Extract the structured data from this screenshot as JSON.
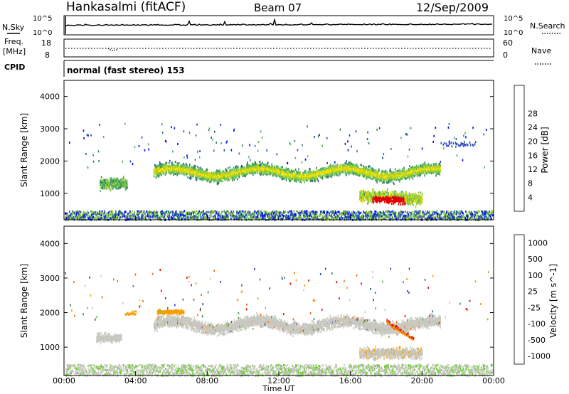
{
  "header": {
    "station": "Hankasalmi (fitACF)",
    "beam": "Beam 07",
    "date": "12/Sep/2009"
  },
  "noise_panel": {
    "left_label": "N.Sky",
    "right_label": "N.Search",
    "left_ticks": [
      "10^5",
      "10^0"
    ],
    "right_ticks": [
      "10^5",
      "10^0"
    ]
  },
  "freq_panel": {
    "left_label": "Freq.",
    "left_unit": "[MHz]",
    "right_label": "Nave",
    "left_ticks": [
      "18",
      "8"
    ],
    "right_ticks": [
      "60",
      "0"
    ]
  },
  "cpid_panel": {
    "label": "CPID",
    "text": "normal (fast stereo) 153"
  },
  "chart_data": [
    {
      "type": "heatmap",
      "name": "power",
      "ylabel": "Slant Range [km]",
      "y_ticks": [
        "1000",
        "2000",
        "3000",
        "4000"
      ],
      "ylim": [
        180,
        4500
      ],
      "colorbar_label": "Power [dB]",
      "colorbar_ticks": [
        "4",
        "8",
        "12",
        "16",
        "20",
        "24",
        "28"
      ],
      "colorbar_range": [
        0,
        30
      ],
      "colormap": [
        "#0000ff",
        "#2244bb",
        "#2e7f5c",
        "#55b55d",
        "#a8d02a",
        "#f5e400",
        "#f5a000",
        "#f06400",
        "#e10000"
      ],
      "features": [
        {
          "description": "main echo band",
          "time_start": "05:00",
          "time_end": "21:00",
          "range_km": [
            1350,
            2000
          ],
          "peak_power_db": 18
        },
        {
          "description": "strong near-range band",
          "time_start": "16:30",
          "time_end": "20:00",
          "range_km": [
            600,
            1300
          ],
          "peak_power_db": 30
        },
        {
          "description": "early patch",
          "time_start": "02:00",
          "time_end": "03:30",
          "range_km": [
            1100,
            1550
          ],
          "peak_power_db": 14
        }
      ]
    },
    {
      "type": "heatmap",
      "name": "velocity",
      "ylabel": "Slant Range [km]",
      "xlabel": "Time UT",
      "x_ticks": [
        "00:00",
        "04:00",
        "08:00",
        "12:00",
        "16:00",
        "20:00",
        "00:00"
      ],
      "y_ticks": [
        "1000",
        "2000",
        "3000",
        "4000"
      ],
      "ylim": [
        180,
        4500
      ],
      "colorbar_label": "Velocity [m s^-1]",
      "colorbar_ticks": [
        "1000",
        "500",
        "100",
        "25",
        "-25",
        "-100",
        "-500",
        "-1000"
      ],
      "colormap": [
        "#2244bb",
        "#2e7f5c",
        "#3a9a45",
        "#6ecb3a",
        "#c8c8c0",
        "#f5a000",
        "#f06a00",
        "#e10000"
      ],
      "features": [
        {
          "description": "ground scatter band",
          "time_start": "05:00",
          "time_end": "21:00",
          "range_km": [
            1350,
            2000
          ],
          "velocity_ms": 0
        },
        {
          "description": "approaching flow",
          "time_start": "18:00",
          "time_end": "19:30",
          "range_km": [
            1200,
            1700
          ],
          "velocity_ms": -500
        }
      ]
    }
  ]
}
